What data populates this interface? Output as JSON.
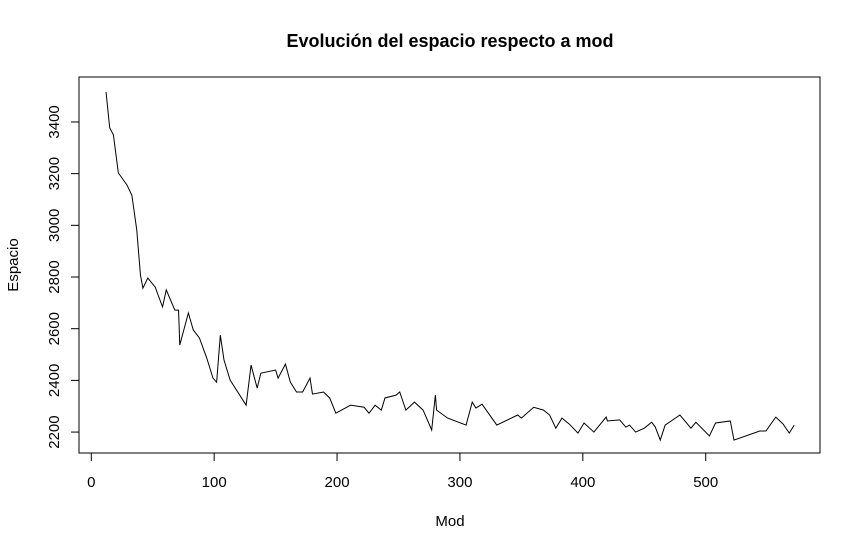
{
  "chart_data": {
    "type": "line",
    "title": "Evolución del espacio respecto a mod",
    "xlabel": "Mod",
    "ylabel": "Espacio",
    "color": "#000000",
    "x": [
      12,
      15,
      18,
      22,
      29,
      33,
      37,
      40,
      42,
      46,
      52,
      58,
      61,
      68,
      71,
      72,
      79,
      83,
      88,
      94,
      99,
      102,
      105,
      108,
      113,
      126,
      130,
      135,
      138,
      150,
      152,
      158,
      162,
      167,
      172,
      178,
      180,
      189,
      194,
      199,
      211,
      222,
      226,
      231,
      236,
      239,
      248,
      251,
      256,
      263,
      270,
      277,
      280,
      281,
      290,
      305,
      310,
      313,
      318,
      330,
      347,
      350,
      360,
      368,
      373,
      378,
      383,
      389,
      396,
      401,
      409,
      419,
      420,
      430,
      435,
      438,
      443,
      450,
      456,
      459,
      463,
      467,
      479,
      488,
      492,
      503,
      508,
      520,
      523,
      544,
      549,
      557,
      563,
      568,
      572
    ],
    "values": [
      3516,
      3377,
      3350,
      3203,
      3156,
      3117,
      2982,
      2808,
      2757,
      2796,
      2761,
      2684,
      2750,
      2672,
      2672,
      2537,
      2661,
      2595,
      2564,
      2486,
      2409,
      2393,
      2575,
      2479,
      2401,
      2304,
      2459,
      2370,
      2428,
      2440,
      2409,
      2463,
      2393,
      2355,
      2355,
      2409,
      2347,
      2355,
      2332,
      2273,
      2304,
      2296,
      2273,
      2304,
      2285,
      2332,
      2343,
      2355,
      2285,
      2316,
      2285,
      2208,
      2343,
      2285,
      2254,
      2227,
      2316,
      2293,
      2308,
      2227,
      2266,
      2254,
      2296,
      2285,
      2266,
      2215,
      2254,
      2231,
      2196,
      2235,
      2200,
      2258,
      2243,
      2247,
      2219,
      2227,
      2200,
      2215,
      2238,
      2219,
      2169,
      2227,
      2266,
      2215,
      2238,
      2185,
      2235,
      2243,
      2169,
      2204,
      2204,
      2258,
      2231,
      2196,
      2227
    ],
    "xlim": [
      -10,
      593
    ],
    "ylim": [
      2119,
      3574
    ],
    "xticks": [
      0,
      100,
      200,
      300,
      400,
      500
    ],
    "yticks": [
      2200,
      2400,
      2600,
      2800,
      3000,
      3200,
      3400
    ]
  }
}
